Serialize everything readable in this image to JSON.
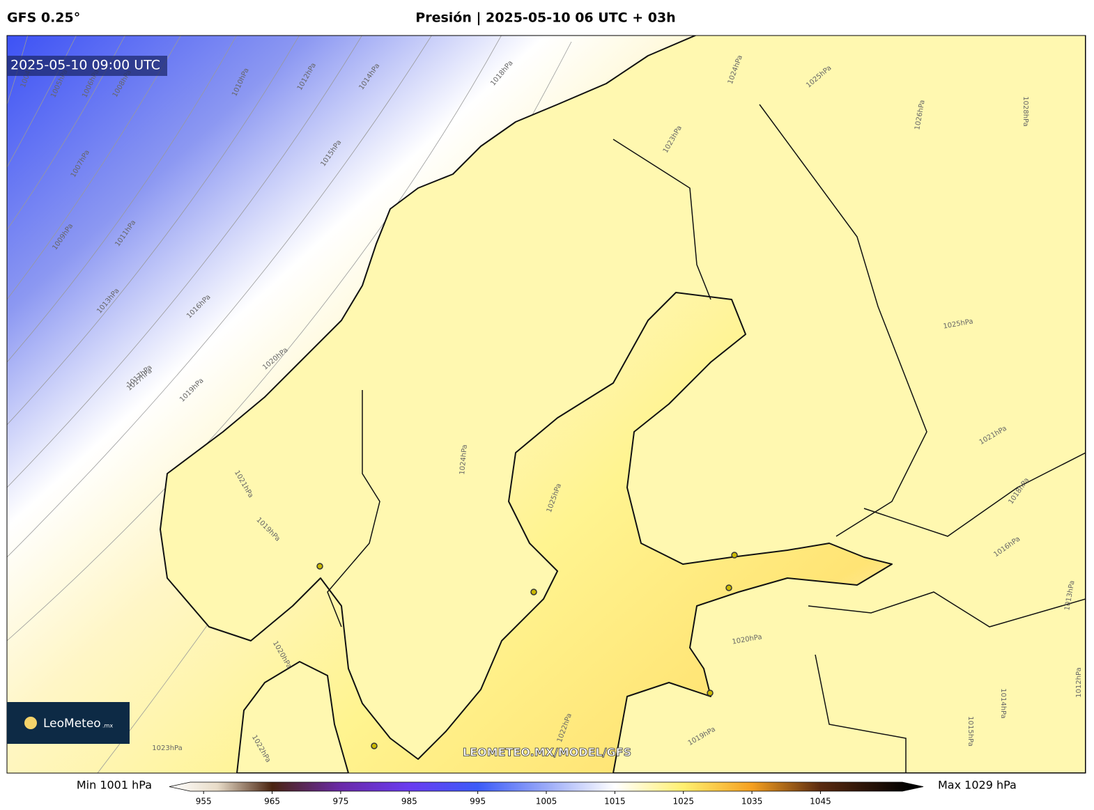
{
  "header": {
    "model": "GFS 0.25°",
    "title": "Presión | 2025-05-10 06 UTC + 03h"
  },
  "map": {
    "timestamp": "2025-05-10 09:00 UTC",
    "watermark": "LEOMETEO.MX/MODEL/GFS",
    "logo": "LeoMeteo",
    "logo_suffix": ".mx",
    "isobar_labels": [
      "1004hPa",
      "1005hPa",
      "1006hPa",
      "1007hPa",
      "1008hPa",
      "1009hPa",
      "1010hPa",
      "1011hPa",
      "1012hPa",
      "1013hPa",
      "1014hPa",
      "1015hPa",
      "1016hPa",
      "1017hPa",
      "1018hPa",
      "1019hPa",
      "1020hPa",
      "1021hPa",
      "1023hPa",
      "1024hPa",
      "1025hPa",
      "1026hPa",
      "1028hPa",
      "1021hPa",
      "1018hPa",
      "1016hPa",
      "1013hPa",
      "1014hPa",
      "1015hPa",
      "1012hPa",
      "1020hPa",
      "1019hPa",
      "1017hPa",
      "1022hPa",
      "1023hPa",
      "1020hPa",
      "1019hPa",
      "1022hPa",
      "1024hPa",
      "1025hPa",
      "1025hPa"
    ]
  },
  "colorbar": {
    "min_label": "Min 1001 hPa",
    "max_label": "Max 1029 hPa",
    "range": [
      950,
      1060
    ],
    "ticks": [
      955,
      965,
      975,
      985,
      995,
      1005,
      1015,
      1025,
      1035,
      1045
    ],
    "stops": [
      {
        "value": 950,
        "color": "#ffffff"
      },
      {
        "value": 957,
        "color": "#e8dcc8"
      },
      {
        "value": 965,
        "color": "#4a2410"
      },
      {
        "value": 975,
        "color": "#6a2aa8"
      },
      {
        "value": 985,
        "color": "#6a3cf0"
      },
      {
        "value": 995,
        "color": "#3c5cf8"
      },
      {
        "value": 1005,
        "color": "#9aaaf8"
      },
      {
        "value": 1015,
        "color": "#ffffff"
      },
      {
        "value": 1025,
        "color": "#fff070"
      },
      {
        "value": 1035,
        "color": "#f5a020"
      },
      {
        "value": 1045,
        "color": "#5a2a10"
      },
      {
        "value": 1058,
        "color": "#000000"
      }
    ]
  }
}
